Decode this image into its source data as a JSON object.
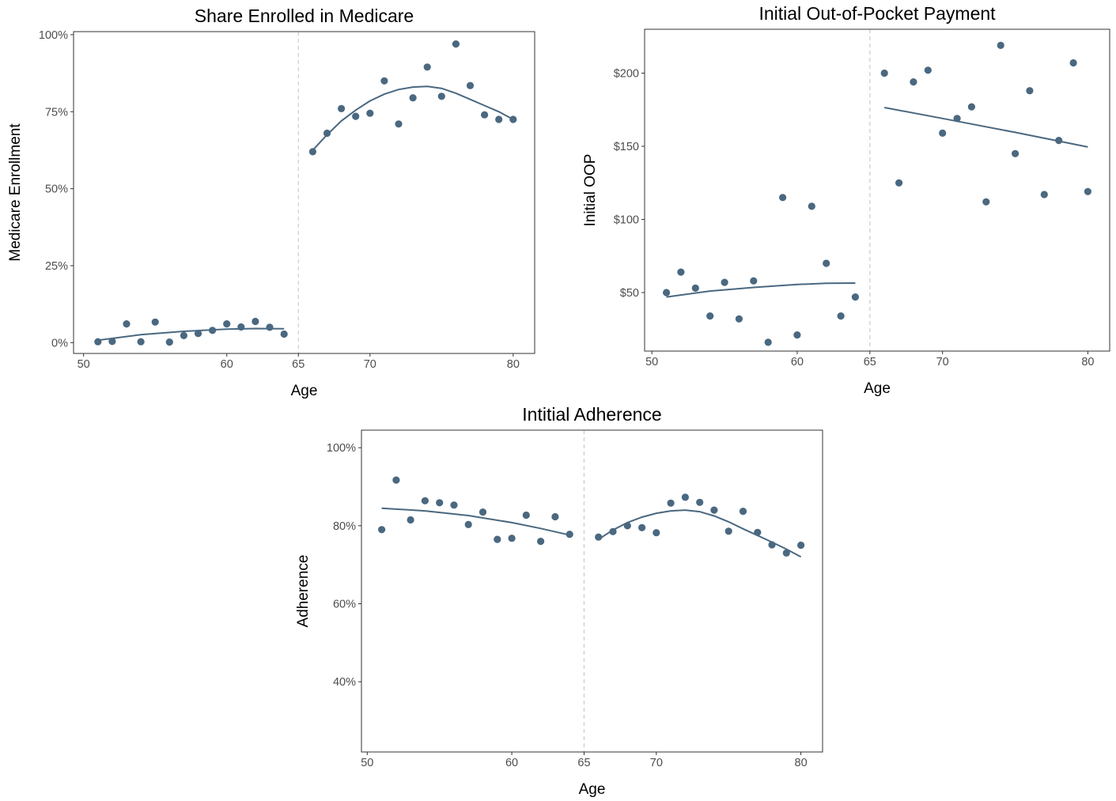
{
  "colors": {
    "point": "#4a6880",
    "fit": "#4a6880"
  },
  "chart_data": [
    {
      "type": "scatter",
      "title": "Share Enrolled in Medicare",
      "xlabel": "Age",
      "ylabel": "Medicare Enrollment",
      "xlim": [
        49.3,
        81.5
      ],
      "ylim": [
        -3.5,
        101
      ],
      "xticks": [
        50,
        60,
        65,
        70,
        80
      ],
      "yticks": [
        0,
        25,
        50,
        75,
        100
      ],
      "ytick_labels": [
        "0%",
        "25%",
        "50%",
        "75%",
        "100%"
      ],
      "cutoff": 65,
      "grid": false,
      "points": [
        [
          51,
          0.3
        ],
        [
          52,
          0.4
        ],
        [
          53,
          6.1
        ],
        [
          54,
          0.3
        ],
        [
          55,
          6.7
        ],
        [
          56,
          0.2
        ],
        [
          57,
          2.3
        ],
        [
          58,
          3.0
        ],
        [
          59,
          4.0
        ],
        [
          60,
          6.1
        ],
        [
          61,
          5.1
        ],
        [
          62,
          6.9
        ],
        [
          63,
          5.0
        ],
        [
          64,
          2.8
        ],
        [
          66,
          62.0
        ],
        [
          67,
          68.0
        ],
        [
          68,
          76.0
        ],
        [
          69,
          73.5
        ],
        [
          70,
          74.5
        ],
        [
          71,
          85.0
        ],
        [
          72,
          71.0
        ],
        [
          73,
          79.5
        ],
        [
          74,
          89.5
        ],
        [
          75,
          80.0
        ],
        [
          76,
          97.0
        ],
        [
          77,
          83.5
        ],
        [
          78,
          74.0
        ],
        [
          79,
          72.5
        ],
        [
          80,
          72.5
        ]
      ],
      "fit": [
        [
          [
            51,
            0.8
          ],
          [
            54,
            2.6
          ],
          [
            57,
            3.7
          ],
          [
            60,
            4.4
          ],
          [
            62,
            4.6
          ],
          [
            64,
            4.5
          ]
        ],
        [
          [
            66,
            62.5
          ],
          [
            67,
            67.5
          ],
          [
            68,
            72.0
          ],
          [
            69,
            75.5
          ],
          [
            70,
            78.5
          ],
          [
            71,
            80.7
          ],
          [
            72,
            82.2
          ],
          [
            73,
            83.0
          ],
          [
            74,
            83.2
          ],
          [
            75,
            82.6
          ],
          [
            76,
            81.0
          ],
          [
            77,
            79.0
          ],
          [
            78,
            77.0
          ],
          [
            79,
            75.0
          ],
          [
            80,
            72.5
          ]
        ]
      ]
    },
    {
      "type": "scatter",
      "title": "Initial Out-of-Pocket Payment",
      "xlabel": "Age",
      "ylabel": "Initial OOP",
      "xlim": [
        49.5,
        81.5
      ],
      "ylim": [
        10,
        230
      ],
      "xticks": [
        50,
        60,
        65,
        70,
        80
      ],
      "yticks": [
        50,
        100,
        150,
        200
      ],
      "ytick_labels": [
        "$50",
        "$100",
        "$150",
        "$200"
      ],
      "cutoff": 65,
      "grid": false,
      "points": [
        [
          51,
          50
        ],
        [
          52,
          64
        ],
        [
          53,
          53
        ],
        [
          54,
          34
        ],
        [
          55,
          57
        ],
        [
          56,
          32
        ],
        [
          57,
          58
        ],
        [
          58,
          16
        ],
        [
          59,
          115
        ],
        [
          60,
          21
        ],
        [
          61,
          109
        ],
        [
          62,
          70
        ],
        [
          63,
          34
        ],
        [
          64,
          47
        ],
        [
          66,
          200
        ],
        [
          67,
          125
        ],
        [
          68,
          194
        ],
        [
          69,
          202
        ],
        [
          70,
          159
        ],
        [
          71,
          169
        ],
        [
          72,
          177
        ],
        [
          73,
          112
        ],
        [
          74,
          219
        ],
        [
          75,
          145
        ],
        [
          76,
          188
        ],
        [
          77,
          117
        ],
        [
          78,
          154
        ],
        [
          79,
          207
        ],
        [
          80,
          119
        ]
      ],
      "fit": [
        [
          [
            51,
            47
          ],
          [
            54,
            51
          ],
          [
            57,
            53.5
          ],
          [
            60,
            55.5
          ],
          [
            62,
            56.3
          ],
          [
            64,
            56.5
          ]
        ],
        [
          [
            66,
            176.5
          ],
          [
            70,
            169
          ],
          [
            75,
            159.5
          ],
          [
            80,
            149.5
          ]
        ]
      ]
    },
    {
      "type": "scatter",
      "title": "Intitial Adherence",
      "xlabel": "Age",
      "ylabel": "Adherence",
      "xlim": [
        49.6,
        81.5
      ],
      "ylim": [
        22,
        104.5
      ],
      "xticks": [
        50,
        60,
        65,
        70,
        80
      ],
      "yticks": [
        40,
        60,
        80,
        100
      ],
      "ytick_labels": [
        "40%",
        "60%",
        "80%",
        "100%"
      ],
      "cutoff": 65,
      "grid": false,
      "points": [
        [
          51,
          79
        ],
        [
          52,
          91.7
        ],
        [
          53,
          81.5
        ],
        [
          54,
          86.4
        ],
        [
          55,
          85.9
        ],
        [
          56,
          85.3
        ],
        [
          57,
          80.3
        ],
        [
          58,
          83.5
        ],
        [
          59,
          76.5
        ],
        [
          60,
          76.8
        ],
        [
          61,
          82.7
        ],
        [
          62,
          76
        ],
        [
          63,
          82.3
        ],
        [
          64,
          77.8
        ],
        [
          66,
          77.1
        ],
        [
          67,
          78.5
        ],
        [
          68,
          80
        ],
        [
          69,
          79.5
        ],
        [
          70,
          78.2
        ],
        [
          71,
          85.8
        ],
        [
          72,
          87.3
        ],
        [
          73,
          86.0
        ],
        [
          74,
          84.0
        ],
        [
          75,
          78.6
        ],
        [
          76,
          83.7
        ],
        [
          77,
          78.3
        ],
        [
          78,
          75.1
        ],
        [
          79,
          73
        ],
        [
          80,
          75
        ]
      ],
      "fit": [
        [
          [
            51,
            84.5
          ],
          [
            54,
            83.8
          ],
          [
            57,
            82.6
          ],
          [
            60,
            80.8
          ],
          [
            62,
            79.3
          ],
          [
            64,
            77.6
          ]
        ],
        [
          [
            66,
            76.5
          ],
          [
            67,
            78.9
          ],
          [
            68,
            80.8
          ],
          [
            69,
            82.2
          ],
          [
            70,
            83.2
          ],
          [
            71,
            83.8
          ],
          [
            72,
            84.0
          ],
          [
            73,
            83.6
          ],
          [
            74,
            82.5
          ],
          [
            75,
            81.0
          ],
          [
            76,
            79.2
          ],
          [
            77,
            77.5
          ],
          [
            78,
            75.8
          ],
          [
            79,
            74.0
          ],
          [
            80,
            72.0
          ]
        ]
      ]
    }
  ]
}
